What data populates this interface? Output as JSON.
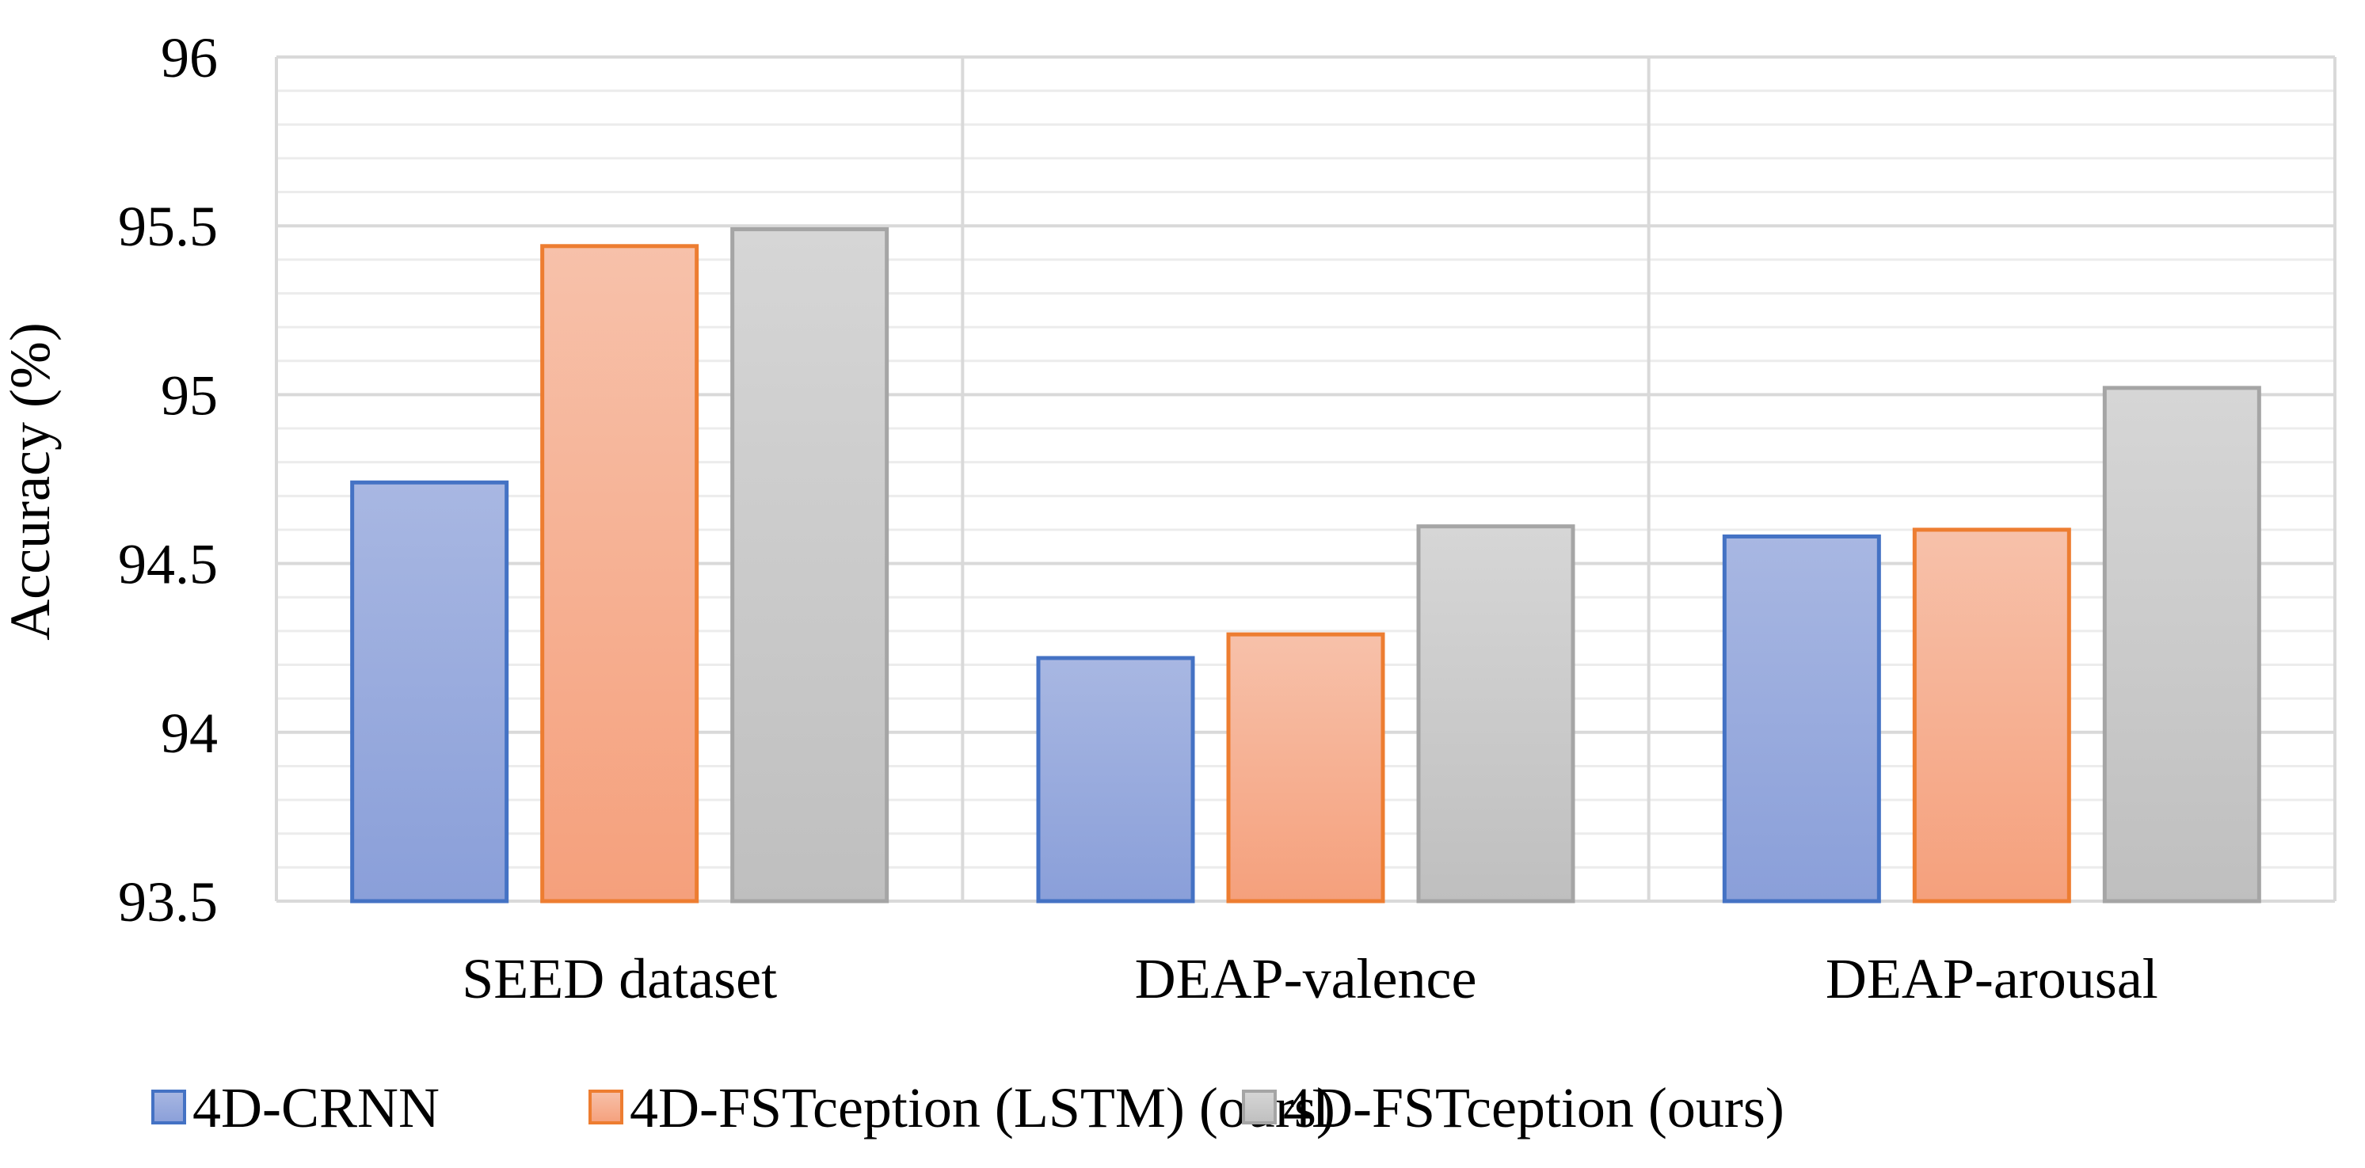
{
  "chart_data": {
    "type": "bar",
    "title": "",
    "xlabel": "",
    "ylabel": "Accuracy (%)",
    "ylim": [
      93.5,
      96
    ],
    "yticks": [
      93.5,
      94,
      94.5,
      95,
      95.5,
      96
    ],
    "ytick_labels": [
      "93.5",
      "94",
      "94.5",
      "95",
      "95.5",
      "96"
    ],
    "grid": true,
    "legend_position": "bottom",
    "categories": [
      "SEED dataset",
      "DEAP-valence",
      "DEAP-arousal"
    ],
    "series": [
      {
        "name": "4D-CRNN",
        "values": [
          94.74,
          94.22,
          94.58
        ]
      },
      {
        "name": "4D-FSTception (LSTM) (ours)",
        "values": [
          95.44,
          94.29,
          94.6
        ]
      },
      {
        "name": "4D-FSTception (ours)",
        "values": [
          95.49,
          94.61,
          95.02
        ]
      }
    ]
  },
  "colors": {
    "series_fill_top": [
      "#a8b7e2",
      "#f7c1aa",
      "#d6d6d6"
    ],
    "series_fill_bottom": [
      "#8a9fd9",
      "#f5a07c",
      "#bfbfbf"
    ],
    "series_stroke": [
      "#4472c4",
      "#ed7d31",
      "#a5a5a5"
    ],
    "gridline": "#d9d9d9",
    "minor_gridline": "#ececec"
  }
}
